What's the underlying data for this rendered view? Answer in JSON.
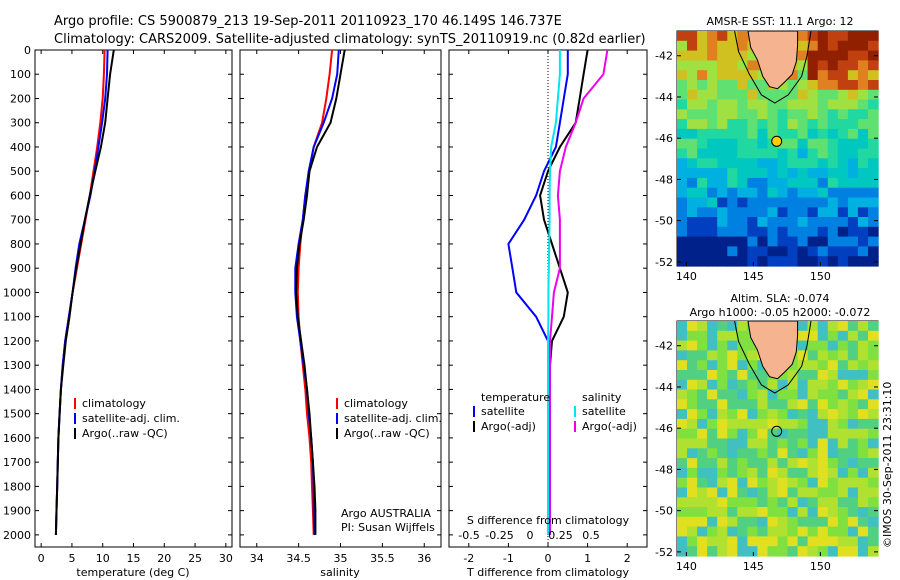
{
  "header": {
    "line1": "Argo profile: CS 5900879_213 19-Sep-2011 20110923_170 46.149S 146.737E",
    "line2": "Climatology: CARS2009. Satellite-adjusted climatology: synTS_20110919.nc (0.82d earlier)"
  },
  "colors": {
    "climatology": "#ff0000",
    "satellite": "#0000ff",
    "argo": "#000000",
    "salinity_sat": "#00e5ee",
    "salinity_argo": "#ee00ee",
    "land": "#f5b38f",
    "marker": "#ffcc00"
  },
  "chart_data": [
    {
      "type": "line",
      "xlabel": "temperature (deg C)",
      "xlim": [
        -1,
        31
      ],
      "xticks": [
        0,
        5,
        10,
        15,
        20,
        25,
        30
      ],
      "ylim": [
        0,
        2050
      ],
      "yticks": [
        0,
        100,
        200,
        300,
        400,
        500,
        600,
        700,
        800,
        900,
        1000,
        1100,
        1200,
        1300,
        1400,
        1500,
        1600,
        1700,
        1800,
        1900,
        2000
      ],
      "legend": [
        "climatology",
        "satellite-adj. clim.",
        "Argo(..raw -QC)"
      ],
      "series": [
        {
          "name": "climatology",
          "color": "#ff0000",
          "x": [
            10.3,
            10.2,
            10.0,
            9.6,
            9.1,
            8.5,
            7.9,
            7.2,
            6.5,
            5.8,
            5.1,
            4.5,
            3.9,
            3.5,
            3.2,
            3.0,
            2.8,
            2.7,
            2.6,
            2.5,
            2.4
          ],
          "y": [
            0,
            100,
            200,
            300,
            400,
            500,
            600,
            700,
            800,
            900,
            1000,
            1100,
            1200,
            1300,
            1400,
            1500,
            1600,
            1700,
            1800,
            1900,
            2000
          ]
        },
        {
          "name": "satellite-adj. clim.",
          "color": "#0000ff",
          "x": [
            10.8,
            10.7,
            10.4,
            9.9,
            9.3,
            8.7,
            8.0,
            7.1,
            6.2,
            5.6,
            5.1,
            4.5,
            3.9,
            3.5,
            3.2,
            3.0,
            2.8,
            2.7,
            2.6,
            2.5,
            2.4
          ],
          "y": [
            0,
            100,
            200,
            300,
            400,
            500,
            600,
            700,
            800,
            900,
            1000,
            1100,
            1200,
            1300,
            1400,
            1500,
            1600,
            1700,
            1800,
            1900,
            2000
          ]
        },
        {
          "name": "Argo(..raw -QC)",
          "color": "#000000",
          "x": [
            11.8,
            11.2,
            10.8,
            10.4,
            9.7,
            8.8,
            7.9,
            7.1,
            6.4,
            5.7,
            5.1,
            4.6,
            4.0,
            3.6,
            3.2,
            3.0,
            2.8,
            2.7,
            2.6,
            2.5,
            2.4
          ],
          "y": [
            0,
            100,
            200,
            300,
            400,
            500,
            600,
            700,
            800,
            900,
            1000,
            1100,
            1200,
            1300,
            1400,
            1500,
            1600,
            1700,
            1800,
            1900,
            2000
          ]
        }
      ]
    },
    {
      "type": "line",
      "xlabel": "salinity",
      "xlim": [
        33.8,
        36.2
      ],
      "xticks": [
        34,
        34.5,
        35,
        35.5,
        36
      ],
      "ylim": [
        0,
        2050
      ],
      "legend": [
        "climatology",
        "satellite-adj. clim.",
        "Argo(..raw -QC)"
      ],
      "annotation": [
        "Argo AUSTRALIA",
        "PI: Susan Wijffels"
      ],
      "series": [
        {
          "name": "climatology",
          "color": "#ff0000",
          "x": [
            34.9,
            34.87,
            34.83,
            34.78,
            34.68,
            34.63,
            34.58,
            34.55,
            34.52,
            34.5,
            34.49,
            34.5,
            34.52,
            34.55,
            34.58,
            34.6,
            34.63,
            34.65,
            34.66,
            34.67,
            34.68
          ],
          "y": [
            0,
            100,
            200,
            300,
            400,
            500,
            600,
            700,
            800,
            900,
            1000,
            1100,
            1200,
            1300,
            1400,
            1500,
            1600,
            1700,
            1800,
            1900,
            2000
          ]
        },
        {
          "name": "satellite-adj. clim.",
          "color": "#0000ff",
          "x": [
            34.98,
            34.96,
            34.9,
            34.8,
            34.68,
            34.62,
            34.58,
            34.55,
            34.5,
            34.46,
            34.46,
            34.48,
            34.52,
            34.56,
            34.6,
            34.62,
            34.65,
            34.67,
            34.68,
            34.68,
            34.69
          ],
          "y": [
            0,
            100,
            200,
            300,
            400,
            500,
            600,
            700,
            800,
            900,
            1000,
            1100,
            1200,
            1300,
            1400,
            1500,
            1600,
            1700,
            1800,
            1900,
            2000
          ]
        },
        {
          "name": "Argo(..raw -QC)",
          "color": "#000000",
          "x": [
            35.05,
            35.0,
            34.95,
            34.88,
            34.72,
            34.63,
            34.6,
            34.56,
            34.51,
            34.48,
            34.47,
            34.49,
            34.53,
            34.57,
            34.6,
            34.63,
            34.65,
            34.67,
            34.69,
            34.7,
            34.7
          ],
          "y": [
            0,
            100,
            200,
            300,
            400,
            500,
            600,
            700,
            800,
            900,
            1000,
            1100,
            1200,
            1300,
            1400,
            1500,
            1600,
            1700,
            1800,
            1900,
            2000
          ]
        }
      ]
    },
    {
      "type": "line",
      "xlabel": "T difference from climatology",
      "xlabel_top": "S difference from climatology",
      "xlim": [
        -2.5,
        2.5
      ],
      "xticks": [
        -2,
        -1,
        0,
        1,
        2
      ],
      "xticks_top": [
        "-0.5",
        "-0.25",
        "0",
        "0.25",
        "0.5"
      ],
      "ylim": [
        0,
        2050
      ],
      "legend_left_title": "temperature",
      "legend_right_title": "salinity",
      "legend": [
        "satellite",
        "Argo(-adj)",
        "satellite",
        "Argo(-adj)"
      ],
      "series": [
        {
          "name": "satellite",
          "group": "temperature",
          "color": "#0000ff",
          "x": [
            0.5,
            0.5,
            0.4,
            0.3,
            0.2,
            -0.1,
            -0.3,
            -0.6,
            -1.0,
            -0.9,
            -0.8,
            -0.3,
            0.0,
            0.0,
            0.0,
            0.0,
            0.0,
            0.0,
            0.0,
            0.0,
            0.0
          ],
          "y": [
            0,
            100,
            200,
            300,
            400,
            500,
            600,
            700,
            800,
            900,
            1000,
            1100,
            1200,
            1300,
            1400,
            1500,
            1600,
            1700,
            1800,
            1900,
            2000
          ]
        },
        {
          "name": "Argo(-adj)",
          "group": "temperature",
          "color": "#000000",
          "x": [
            1.0,
            0.9,
            0.8,
            0.7,
            0.3,
            0.0,
            -0.2,
            -0.1,
            0.1,
            0.3,
            0.5,
            0.4,
            0.1,
            0.05,
            0.05,
            0.05,
            0.05,
            0.05,
            0.05,
            0.05,
            0.05
          ],
          "y": [
            0,
            100,
            200,
            300,
            400,
            500,
            600,
            700,
            800,
            900,
            1000,
            1100,
            1200,
            1300,
            1400,
            1500,
            1600,
            1700,
            1800,
            1900,
            2000
          ]
        },
        {
          "name": "satellite",
          "group": "salinity",
          "color": "#00e5ee",
          "x": [
            0.3,
            0.3,
            0.25,
            0.2,
            0.08,
            0.05,
            0.04,
            0.04,
            0.03,
            0.02,
            0.01,
            0.01,
            0.0,
            0.0,
            0.0,
            0.0,
            0.0,
            0.0,
            0.0,
            0.0,
            0.0
          ],
          "y": [
            0,
            100,
            200,
            300,
            400,
            500,
            600,
            700,
            800,
            900,
            1000,
            1100,
            1200,
            1300,
            1400,
            1500,
            1600,
            1700,
            1800,
            1900,
            2000
          ]
        },
        {
          "name": "Argo(-adj)",
          "group": "salinity",
          "color": "#ee00ee",
          "x": [
            1.5,
            1.4,
            0.9,
            0.7,
            0.45,
            0.3,
            0.25,
            0.3,
            0.3,
            0.3,
            0.15,
            0.1,
            0.05,
            0.05,
            0.05,
            0.05,
            0.05,
            0.05,
            0.05,
            0.05,
            0.05
          ],
          "y": [
            0,
            100,
            200,
            300,
            400,
            500,
            600,
            700,
            800,
            900,
            1000,
            1100,
            1200,
            1300,
            1400,
            1500,
            1600,
            1700,
            1800,
            1900,
            2000
          ]
        }
      ]
    },
    {
      "type": "heatmap",
      "title": "AMSR-E SST: 11.1  Argo: 12",
      "xlim": [
        139.3,
        154.3
      ],
      "ylim": [
        -52.2,
        -40.8
      ],
      "xticks": [
        140,
        145,
        150
      ],
      "yticks": [
        -42,
        -44,
        -46,
        -48,
        -50,
        -52
      ],
      "argo_position": [
        146.737,
        -46.149
      ]
    },
    {
      "type": "heatmap",
      "title_line1": "Altim. SLA: -0.074",
      "title_line2": "Argo h1000: -0.05 h2000: -0.072",
      "xlim": [
        139.3,
        154.3
      ],
      "ylim": [
        -52.2,
        -40.8
      ],
      "xticks": [
        140,
        145,
        150
      ],
      "yticks": [
        -42,
        -44,
        -46,
        -48,
        -50,
        -52
      ],
      "argo_position": [
        146.737,
        -46.149
      ]
    }
  ],
  "credit": "©IMOS 30-Sep-2011 23:31:10"
}
